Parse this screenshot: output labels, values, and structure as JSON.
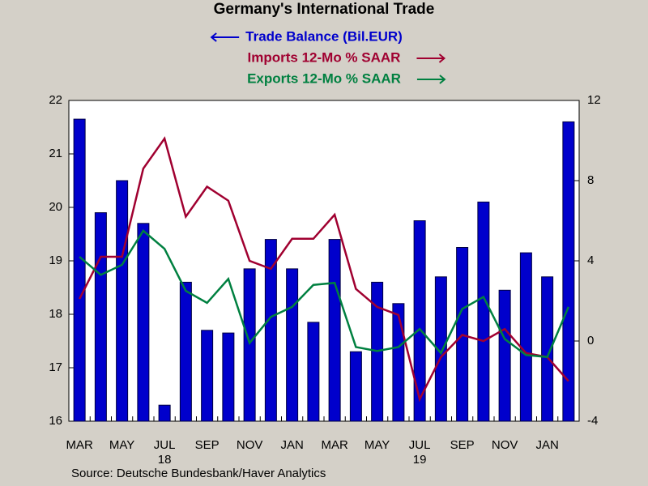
{
  "chart_data": {
    "type": "bar-line",
    "title": "Germany's International Trade",
    "source": "Source:  Deutsche Bundesbank/Haver Analytics",
    "categories": [
      "MAR",
      null,
      "MAY",
      null,
      "JUL\n18",
      null,
      "SEP",
      null,
      "NOV",
      null,
      "JAN",
      null,
      "MAR",
      null,
      "MAY",
      null,
      "JUL\n19",
      null,
      "SEP",
      null,
      "NOV",
      null,
      "JAN",
      null
    ],
    "series": [
      {
        "name": "Trade Balance (Bil.EUR)",
        "color": "#0000cc",
        "kind": "bar",
        "axis": "y",
        "values": [
          21.65,
          19.9,
          20.5,
          19.7,
          16.3,
          18.6,
          17.7,
          17.65,
          18.85,
          19.4,
          18.85,
          17.85,
          19.4,
          17.3,
          18.6,
          18.2,
          19.75,
          18.7,
          19.25,
          20.1,
          18.45,
          19.15,
          18.7,
          21.6
        ]
      },
      {
        "name": "Imports 12-Mo % SAAR",
        "color": "#a00030",
        "kind": "line",
        "axis": "y2",
        "values": [
          2.1,
          4.2,
          4.2,
          8.6,
          10.1,
          6.2,
          7.7,
          7.0,
          4.0,
          3.6,
          5.1,
          5.1,
          6.3,
          2.6,
          1.7,
          1.3,
          -2.9,
          -0.8,
          0.3,
          0.0,
          0.6,
          -0.6,
          -0.8,
          -2.0
        ]
      },
      {
        "name": "Exports 12-Mo % SAAR",
        "color": "#008040",
        "kind": "line",
        "axis": "y2",
        "values": [
          4.2,
          3.3,
          3.8,
          5.5,
          4.6,
          2.5,
          1.9,
          3.1,
          -0.1,
          1.2,
          1.7,
          2.8,
          2.9,
          -0.3,
          -0.5,
          -0.3,
          0.6,
          -0.6,
          1.6,
          2.2,
          0.1,
          -0.7,
          -0.8,
          1.7
        ]
      }
    ],
    "ylim": [
      16,
      22
    ],
    "yticks": [
      16,
      17,
      18,
      19,
      20,
      21,
      22
    ],
    "y2lim": [
      -4,
      12
    ],
    "y2ticks": [
      -4,
      0,
      4,
      8,
      12
    ]
  }
}
